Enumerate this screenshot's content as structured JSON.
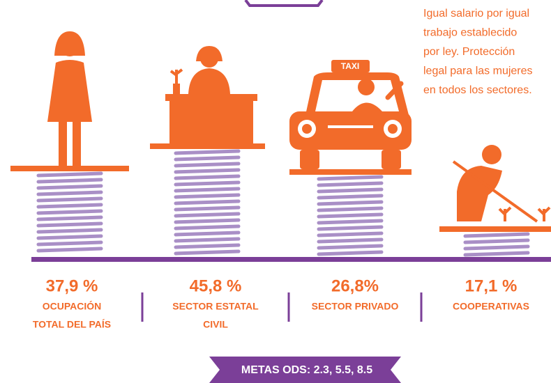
{
  "note": [
    "Igual salario por igual",
    "trabajo establecido",
    "por ley. Protección",
    "legal para las mujeres",
    "en todos los sectores."
  ],
  "items": [
    {
      "value": "37,9 %",
      "label": [
        "OCUPACIÓN",
        "TOTAL DEL PAÍS"
      ]
    },
    {
      "value": "45,8 %",
      "label": [
        "SECTOR ESTATAL",
        "CIVIL"
      ]
    },
    {
      "value": "26,8%",
      "label": [
        "SECTOR PRIVADO"
      ]
    },
    {
      "value": "17,1 %",
      "label": [
        "COOPERATIVAS"
      ]
    }
  ],
  "taxi": "TAXI",
  "footer": "METAS ODS: 2.3, 5.5, 8.5"
}
